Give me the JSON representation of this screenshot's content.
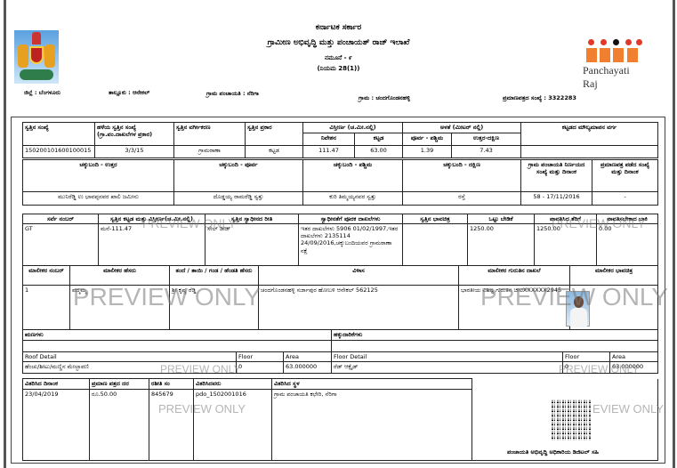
{
  "header": {
    "gov": "ಕರ್ನಾಟಕ ಸರ್ಕಾರ",
    "dept": "ಗ್ರಾಮೀಣ ಅಭಿವೃದ್ಧಿ ಮತ್ತು ಪಂಚಾಯತ್ ರಾಜ್ ಇಲಾಖೆ",
    "form": "ನಮೂನೆ - ೯",
    "rule": "(ನಿಯಮ 28(1))",
    "logo_text": "Panchayati Raj"
  },
  "location": {
    "district": "ಜಿಲ್ಲೆ : ಬೆಂಗಳೂರು",
    "taluk": "ತಾಲ್ಲೂಕು : ಆನೇಕಲ್",
    "gp": "ಗ್ರಾಮ ಪಂಚಾಯತಿ : ನೆರಿಗಾ",
    "village": "ಗ್ರಾಮ : ಚಂದಗೊಂಡನಹಳ್ಳಿ",
    "cert_no": "ಪ್ರಮಾಣಪತ್ರದ ಸಂಖ್ಯೆ : 3322283"
  },
  "property": {
    "h": [
      "ಸ್ವತ್ತಿನ ಸಂಖ್ಯೆ",
      "ಹಳೆಯ ಸ್ವತ್ತಿನ ಸಂಖ್ಯೆ (ಗ್ರಾ.ಪಂ.ದಾಖಲೆಗಳ ಪ್ರಕಾರ)",
      "ಸ್ವತ್ತಿನ ವರ್ಗೀಕರಣ",
      "ಸ್ವತ್ತಿನ ಪ್ರಕಾರ",
      "ವಿಸ್ತೀರ್ಣ (ಚ.ಮೀ.ನಲ್ಲಿ)",
      "ಅಳತೆ (ಮೀಟರ್ ನಲ್ಲಿ)",
      "ಕಟ್ಟಡದ ಮೌಲ್ಯಮಾಪನ ವರ್ಗ",
      "ನಿವೇಶನ",
      "ಕಟ್ಟಡ",
      "ಪೂರ್ವ - ಪಶ್ಚಿಮ",
      "ಉತ್ತರ-ದಕ್ಷಿಣ"
    ],
    "v": [
      "150200101600100015",
      "3/3/15",
      "ಗ್ರಾಮಠಾಣಾ",
      "ಕಟ್ಟಡ",
      "111.47",
      "63.00",
      "1.39",
      "7.43",
      ""
    ]
  },
  "boundaries": {
    "h": [
      "ಚಕ್ಕುಬಂದಿ - ಉತ್ತರ",
      "ಚಕ್ಕುಬಂದಿ - ಪೂರ್ವ",
      "ಚಕ್ಕುಬಂದಿ - ಪಶ್ಚಿಮ",
      "ಚಕ್ಕುಬಂದಿ - ದಕ್ಷಿಣ",
      "ಗ್ರಾಮ ಪಂಚಾಯತಿ ನಿರ್ಣಯದ ಸಂಖ್ಯೆ ಮತ್ತು ದಿನಾಂಕ",
      "ಪ್ರಮಾಣಪತ್ರ ಪಡೆದ ಸಂಖ್ಯೆ ಮತ್ತು ದಿನಾಂಕ"
    ],
    "v": [
      "ಮುನಿರೆಡ್ಡಿ ಉ ಭಾವಪ್ಪನವರ ಖಾಲಿ ಜಮೀನು",
      "ದೊಡ್ಡಯ್ಯ ರಾಮರೆಡ್ಡಿ ಸ್ವತ್ತು",
      "ಕುರಿ ತಿಮ್ಮಯ್ಯನವರ ಸ್ವತ್ತು",
      "ರಸ್ತೆ",
      "58 - 17/11/2016",
      "-"
    ]
  },
  "survey": {
    "h": [
      "ಸರ್ವೆ ನಂಬರ್",
      "ಸ್ವತ್ತಿನ ಕಟ್ಟಡ ಮತ್ತು ವಿಸ್ತೀರ್ಣ(ಚ.ಮೀ.ನಲ್ಲಿ)",
      "ಸ್ವತ್ತಿನ ಸ್ವಾಧೀನದ ರೀತಿ",
      "ಸ್ವಾಧೀನತೆಗೆ ಪೂರಕ ದಾಖಲೆಗಳು",
      "ಸ್ವತ್ತಿನ ಭಾವಚಿತ್ರ",
      "ಒಟ್ಟು ಬೇಡಿಕೆ",
      "ಪಾವತಿಸಿದ ತೆರಿಗೆ",
      "ಪಾವತಿಸಬೇಕಾದ ಬಾಕಿ"
    ],
    "v": [
      "GT",
      "ಮನೆ-111.47",
      "ಸೇಲ್ ಡೀಡ್",
      "ಇತರ ದಾಖಲೆಗಳು 5906 01/02/1997,ಇತರ ದಾಖಲೆಗಳು 2135114 24/09/2016,ಚಕ್ಕುಬಂದಿಯವರ ಗ್ರಾಮಠಾಣಾ ನಕ್ಷೆ",
      "",
      "1250.00",
      "1250.00",
      "0.00"
    ]
  },
  "owner": {
    "h": [
      "ಮಾಲೀಕರ ನಂಬರ್",
      "ಮಾಲೀಕರ ಹೆಸರು",
      "ತಂದೆ / ತಾಯಿ / ಗಂಡ / ಹೆಂಡತಿ ಹೆಸರು",
      "ವಿಳಾಸ",
      "ಮಾಲೀಕರ ಗುರುತಿನ ದಾಖಲೆ",
      "ಮಾಲೀಕರ ಭಾವಚಿತ್ರ"
    ],
    "v": [
      "1",
      "ಪದ್ಮಮ್ಮ",
      "ಶ್ರೀ ಕೃಷ್ಣ ರೆಡ್ಡಿ",
      "ಚಂದಗೊಂಡನಹಳ್ಳಿ ಸರ್ಜಾಪುರ ಹೋಬಳಿ ಆನೇಕಲ್ 562125",
      "ಭಾರತೀಯ ವಿಶಿಷ್ಟ ಗುರುತಿನ ಚೀಟಿXXXXXX2945"
    ]
  },
  "liabilities": {
    "left": "ಋಣಗಳು",
    "right": "ಹಕ್ಕುದಾರಿಕೆಗಳು"
  },
  "roof": {
    "h": [
      "Roof Detail",
      "Floor",
      "Area",
      "Floor Detail",
      "Floor",
      "Area"
    ],
    "v": [
      "ಹೆಂಚು/ಶೀಟು/ಮಣ್ಣಿನ ಮೇಲ್ಛಾವಣಿ",
      "0",
      "63.000000",
      "ರೆಡ್ ಆಕ್ಸೈಡ್",
      "0",
      "63.000000"
    ]
  },
  "issue": {
    "h": [
      "ವಿತರಿಸಿದ ದಿನಾಂಕ",
      "ಪ್ರಮಾಣ ಪತ್ರದ ದರ",
      "ರಶೀತಿ ಸಂ",
      "ವಿತರಿಸಿದವರು",
      "ವಿತರಿಸಿದ ಸ್ಥಳ"
    ],
    "v": [
      "23/04/2019",
      "ರೂ.50.00",
      "845679",
      "pdo_1502001016",
      "ಗ್ರಾಮ ಪಂಚಾಯತಿ ಕಛೇರಿ, ನೆರಿಗಾ"
    ],
    "signature": "ಪಂಚಾಯತಿ ಅಭಿವೃದ್ಧಿ ಅಧಿಕಾರಿಯ ಡಿಜಿಟಲ್ ಸಹಿ"
  },
  "watermark": "PREVIEW ONLY"
}
